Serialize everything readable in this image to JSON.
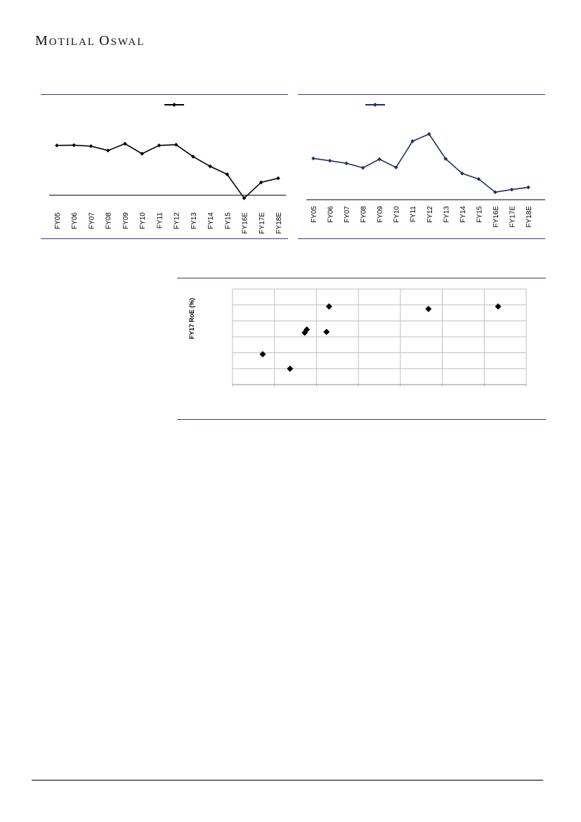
{
  "brand": {
    "first_initial": "M",
    "first_rest": "OTILAL",
    "second_initial": "O",
    "second_rest": "SWAL"
  },
  "colors": {
    "rule": "#3a3a7a",
    "chart1_line": "#000000",
    "chart2_line": "#1a2f6b",
    "grid": "#bfbfbf"
  },
  "chart_data": [
    {
      "type": "line",
      "categories": [
        "FY05",
        "FY06",
        "FY07",
        "FY08",
        "FY09",
        "FY10",
        "FY11",
        "FY12",
        "FY13",
        "FY14",
        "FY15",
        "FY16E",
        "FY17E",
        "FY18E"
      ],
      "series": [
        {
          "values": [
            20.5,
            20.6,
            20.2,
            18.4,
            21.2,
            17.1,
            20.5,
            20.8,
            15.9,
            11.9,
            8.6,
            -1.2,
            5.3,
            7.0
          ]
        }
      ],
      "legend": "top-center",
      "ylim": [
        -3,
        30
      ],
      "zero_line": true
    },
    {
      "type": "line",
      "categories": [
        "FY05",
        "FY06",
        "FY07",
        "FY08",
        "FY09",
        "FY10",
        "FY11",
        "FY12",
        "FY13",
        "FY14",
        "FY15",
        "FY16E",
        "FY17E",
        "FY18E"
      ],
      "series": [
        {
          "values": [
            14.0,
            13.4,
            12.7,
            11.5,
            13.8,
            11.6,
            18.6,
            20.5,
            13.9,
            10.0,
            8.5,
            5.0,
            5.7,
            6.3
          ]
        }
      ],
      "legend": "top-left",
      "ylim": [
        3,
        24
      ]
    },
    {
      "type": "scatter",
      "ylabel": "FY17 RoE (%)",
      "xlim": [
        0,
        7
      ],
      "ylim": [
        0,
        6
      ],
      "grid": true,
      "points": [
        {
          "x": 0.72,
          "y": 1.91
        },
        {
          "x": 1.37,
          "y": 1.0
        },
        {
          "x": 1.72,
          "y": 3.26
        },
        {
          "x": 1.77,
          "y": 3.46
        },
        {
          "x": 2.24,
          "y": 3.31
        },
        {
          "x": 2.3,
          "y": 4.9
        },
        {
          "x": 4.67,
          "y": 4.75
        },
        {
          "x": 6.33,
          "y": 4.9
        }
      ]
    }
  ]
}
